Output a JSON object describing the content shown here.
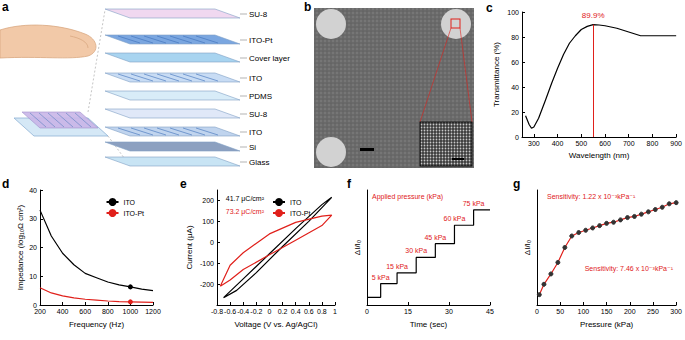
{
  "diagram": {
    "panel_a": {
      "label": "a",
      "layers": [
        "SU-8",
        "ITO-Pt",
        "Cover layer",
        "ITO",
        "PDMS",
        "SU-8",
        "ITO",
        "Si",
        "Glass"
      ]
    },
    "panel_b": {
      "label": "b"
    }
  },
  "chart_data": [
    {
      "title": "c",
      "type": "line",
      "x_label": "Wavelength (nm)",
      "y_label": "Transmittance (%)",
      "x": [
        265,
        280,
        290,
        300,
        320,
        350,
        375,
        400,
        425,
        450,
        475,
        500,
        525,
        550,
        575,
        600,
        650,
        700,
        750,
        800,
        850,
        900
      ],
      "values": [
        17,
        10,
        7,
        8,
        15,
        30,
        43,
        55,
        66,
        75,
        81,
        86,
        88.5,
        89.9,
        89.6,
        89,
        87,
        84,
        81,
        81,
        81,
        81
      ],
      "color": "#000000",
      "xlim": [
        250,
        900
      ],
      "xticks": [
        300,
        400,
        500,
        600,
        700,
        800,
        900
      ],
      "ylim": [
        0,
        100
      ],
      "yticks": [
        0,
        20,
        40,
        60,
        80,
        100
      ],
      "grid": false,
      "annotations": [
        {
          "text": "89.9%",
          "x": 550,
          "y": 89.9,
          "color": "#e0201b"
        }
      ]
    },
    {
      "title": "d",
      "type": "line",
      "x_label": "Frequency (Hz)",
      "y_label": "Impedance (log₁₀Ω cm²)",
      "x": [
        200,
        300,
        400,
        500,
        600,
        700,
        800,
        900,
        1000,
        1100,
        1200
      ],
      "series": [
        {
          "name": "ITO",
          "color": "#000000",
          "values": [
            33,
            24,
            18,
            14,
            11,
            9.5,
            8,
            7,
            6.3,
            5.5,
            5
          ]
        },
        {
          "name": "ITO-Pt",
          "color": "#e0201b",
          "values": [
            6,
            4.2,
            3.2,
            2.5,
            2,
            1.7,
            1.4,
            1.2,
            1.1,
            1.0,
            0.9
          ]
        }
      ],
      "marked_x": 1000,
      "xlim": [
        200,
        1200
      ],
      "xticks": [
        200,
        400,
        600,
        800,
        1000,
        1200
      ],
      "ylim": [
        0,
        40
      ],
      "yticks": [
        0,
        10,
        20,
        30,
        40
      ],
      "legend": "upper right",
      "grid": false
    },
    {
      "title": "e",
      "type": "line",
      "x_label": "Voltage (V vs. Ag/AgCl)",
      "y_label": "Current (μA)",
      "series": [
        {
          "name": "ITO",
          "color": "#000000",
          "charge": "41.7 μC/cm²",
          "x": [
            -0.7,
            -0.4,
            0,
            0.4,
            0.8,
            0.95,
            0.6,
            0.2,
            -0.2,
            -0.5,
            -0.7
          ],
          "values": [
            -265,
            -175,
            -55,
            65,
            180,
            215,
            100,
            -20,
            -145,
            -230,
            -265
          ]
        },
        {
          "name": "ITO-Pt",
          "color": "#e0201b",
          "charge": "73.2 μC/cm²",
          "x": [
            -0.75,
            -0.6,
            -0.4,
            0,
            0.4,
            0.8,
            0.95,
            0.8,
            0.4,
            0,
            -0.4,
            -0.6,
            -0.75
          ],
          "values": [
            -210,
            -110,
            -50,
            40,
            95,
            125,
            130,
            80,
            10,
            -60,
            -130,
            -180,
            -210
          ]
        }
      ],
      "xlim": [
        -0.8,
        1.0
      ],
      "xticks": [
        -0.8,
        -0.6,
        -0.4,
        -0.2,
        0,
        0.2,
        0.4,
        0.6,
        0.8,
        1.0
      ],
      "ylim": [
        -300,
        250
      ],
      "yticks": [
        -200,
        -100,
        0,
        100,
        200
      ],
      "legend": "upper left",
      "grid": false
    },
    {
      "title": "f",
      "type": "line",
      "x_label": "Time (sec)",
      "y_label": "ΔI/I₀",
      "x": [
        0,
        5,
        11,
        18,
        25,
        32,
        39,
        45
      ],
      "values": [
        0.05,
        0.14,
        0.21,
        0.31,
        0.4,
        0.52,
        0.62,
        0.62
      ],
      "step_labels": [
        null,
        "5 kPa",
        "15 kPa",
        "30 kPa",
        "45 kPa",
        "60 kPa",
        "75 kPa",
        null
      ],
      "color": "#000000",
      "line_style": "step",
      "xlim": [
        0,
        45
      ],
      "xticks": [
        0,
        15,
        30,
        45
      ],
      "ylim": [
        0,
        0.75
      ],
      "tick_labels": "x",
      "grid": false,
      "annotations": [
        {
          "text": "Applied pressure (kPa)",
          "color": "#e0201b"
        }
      ]
    },
    {
      "title": "g",
      "type": "line",
      "x_label": "Pressure (kPa)",
      "y_label": "ΔI/I₀",
      "x": [
        5,
        15,
        30,
        45,
        60,
        75,
        90,
        105,
        120,
        135,
        150,
        165,
        180,
        195,
        210,
        225,
        240,
        255,
        270,
        285,
        300
      ],
      "values": [
        0.09,
        0.18,
        0.27,
        0.37,
        0.5,
        0.6,
        0.63,
        0.65,
        0.67,
        0.69,
        0.71,
        0.72,
        0.74,
        0.76,
        0.77,
        0.79,
        0.81,
        0.83,
        0.85,
        0.88,
        0.89
      ],
      "color": "#e0201b",
      "marker": "circle",
      "xlim": [
        0,
        300
      ],
      "xticks": [
        0,
        50,
        100,
        150,
        200,
        250,
        300
      ],
      "ylim": [
        0,
        1
      ],
      "tick_labels": "x",
      "grid": false,
      "annotations": [
        {
          "text": "Sensitivity: 1.22 x 10⁻³kPa⁻¹",
          "color": "#e0201b"
        },
        {
          "text": "Sensitivity: 7.46 x 10⁻³kPa⁻¹",
          "color": "#e0201b"
        }
      ]
    }
  ]
}
